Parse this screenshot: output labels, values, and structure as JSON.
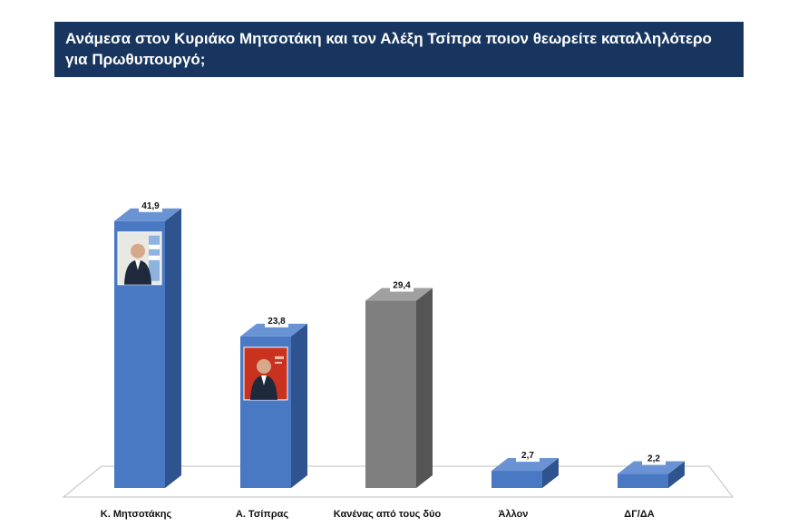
{
  "header": {
    "title": "Ανάμεσα στον Κυριάκο Μητσοτάκη και τον Αλέξη Τσίπρα ποιον θεωρείτε καταλληλότερο για Πρωθυπουργό;"
  },
  "colors": {
    "title_bg": "#17355e",
    "bar_blue": "#4a79c4",
    "bar_blue_dark": "#2f538f",
    "bar_blue_top": "#6a93d3",
    "bar_gray": "#7f7f7f",
    "bar_gray_dark": "#555555",
    "bar_gray_top": "#a0a0a0"
  },
  "chart_data": {
    "type": "bar",
    "categories": [
      "Κ. Μητσοτάκης",
      "Α. Τσίπρας",
      "Κανένας από τους δύο",
      "Άλλον",
      "ΔΓ/ΔΑ"
    ],
    "values": [
      41.9,
      23.8,
      29.4,
      2.7,
      2.2
    ],
    "value_labels": [
      "41,9",
      "23,8",
      "29,4",
      "2,7",
      "2,2"
    ],
    "bar_colors": [
      "blue",
      "blue",
      "gray",
      "blue",
      "blue"
    ],
    "photos": [
      "portrait-mitsotakis",
      "portrait-tsipras",
      null,
      null,
      null
    ],
    "title": "Ανάμεσα στον Κυριάκο Μητσοτάκη και τον Αλέξη Τσίπρα ποιον θεωρείτε καταλληλότερο για Πρωθυπουργό;",
    "xlabel": "",
    "ylabel": "",
    "ylim": [
      0,
      45
    ],
    "grid": false,
    "legend": "none",
    "style": "3d-column"
  }
}
